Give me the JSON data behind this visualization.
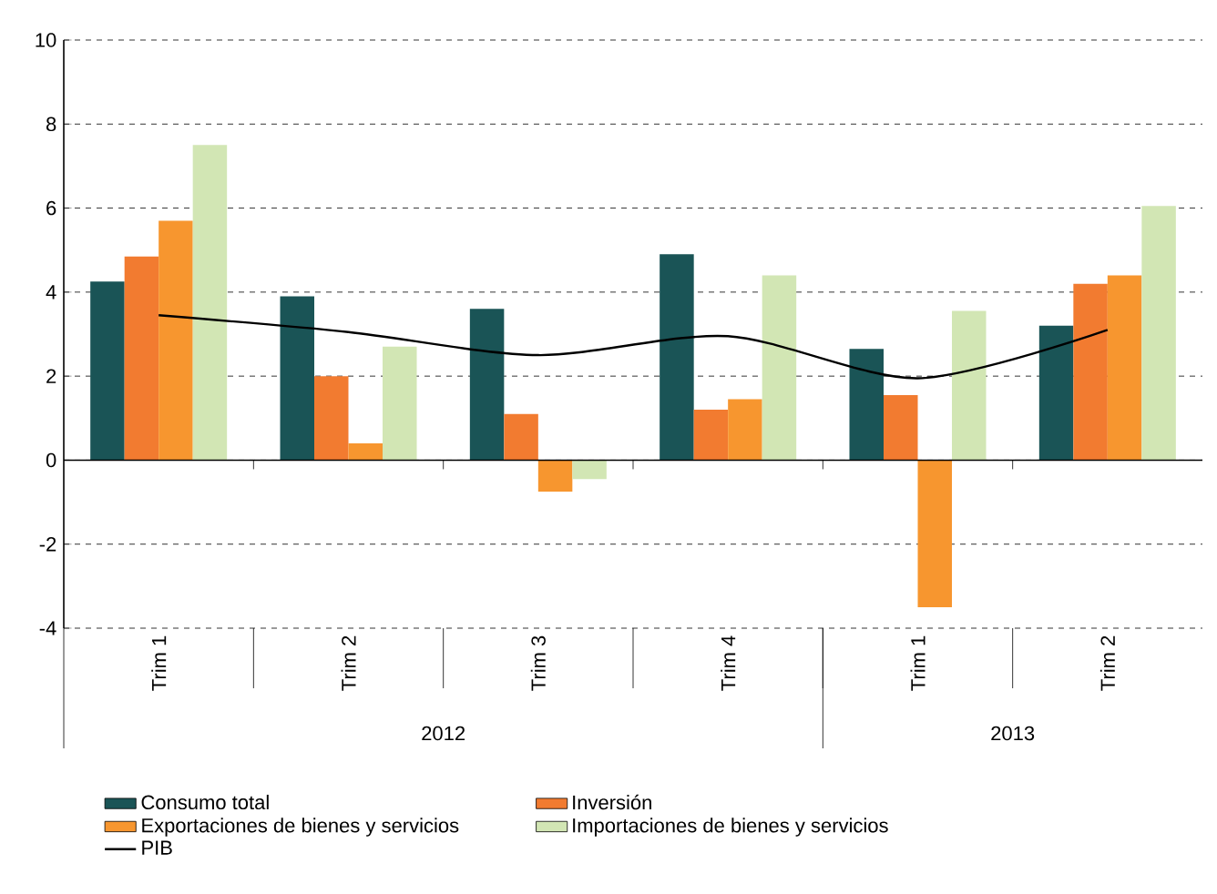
{
  "chart_data": {
    "type": "bar",
    "categories": [
      "Trim 1",
      "Trim 2",
      "Trim 3",
      "Trim 4",
      "Trim 1",
      "Trim 2"
    ],
    "series": [
      {
        "name": "Consumo total",
        "color": "#1a5456",
        "values": [
          4.25,
          3.9,
          3.6,
          4.9,
          2.65,
          3.2
        ]
      },
      {
        "name": "Inversión",
        "color": "#f27b30",
        "values": [
          4.85,
          2.0,
          1.1,
          1.2,
          1.55,
          4.2
        ]
      },
      {
        "name": "Exportaciones de bienes y servicios",
        "color": "#f7962f",
        "values": [
          5.7,
          0.4,
          -0.75,
          1.45,
          -3.5,
          4.4
        ]
      },
      {
        "name": "Importaciones de bienes y servicios",
        "color": "#d2e6b4",
        "values": [
          7.5,
          2.7,
          -0.45,
          4.4,
          3.55,
          6.05
        ]
      },
      {
        "name": "PIB",
        "type": "line",
        "color": "#000000",
        "values": [
          3.45,
          3.05,
          2.5,
          2.95,
          1.95,
          3.1
        ]
      }
    ],
    "annotations": [
      "2012",
      "2013"
    ],
    "ylim": [
      -4,
      10
    ],
    "yticks": [
      -4,
      -2,
      0,
      2,
      4,
      6,
      8,
      10
    ],
    "grid": "y",
    "legend": "bottom",
    "line_style": "solid",
    "marker": "none"
  }
}
